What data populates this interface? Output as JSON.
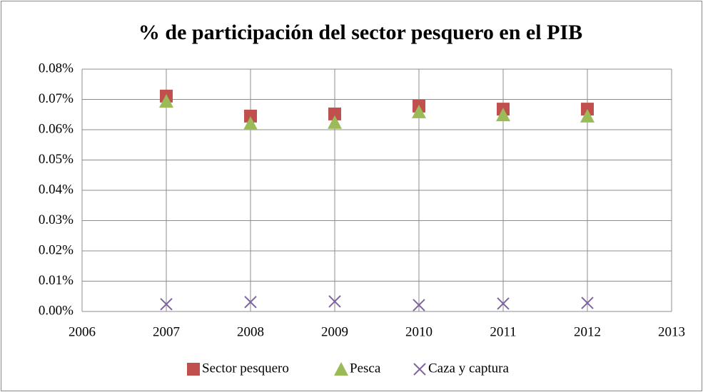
{
  "chart_data": {
    "type": "scatter",
    "title": "% de participación del sector pesquero en el PIB",
    "xlim": [
      2006,
      2013
    ],
    "xticks": [
      2006,
      2007,
      2008,
      2009,
      2010,
      2011,
      2012,
      2013
    ],
    "ylim": [
      0,
      0.08
    ],
    "yticks": [
      {
        "value": 0,
        "label": "0.00%"
      },
      {
        "value": 0.01,
        "label": "0.01%"
      },
      {
        "value": 0.02,
        "label": "0.02%"
      },
      {
        "value": 0.03,
        "label": "0.03%"
      },
      {
        "value": 0.04,
        "label": "0.04%"
      },
      {
        "value": 0.05,
        "label": "0.05%"
      },
      {
        "value": 0.06,
        "label": "0.06%"
      },
      {
        "value": 0.07,
        "label": "0.07%"
      },
      {
        "value": 0.08,
        "label": "0.08%"
      }
    ],
    "grid": true,
    "legend": "bottom",
    "x": [
      2007,
      2008,
      2009,
      2010,
      2011,
      2012
    ],
    "series": [
      {
        "name": "Sector pesquero",
        "color": "#c0504d",
        "marker": "square",
        "values": [
          0.0711,
          0.0645,
          0.0652,
          0.0678,
          0.0668,
          0.0668
        ]
      },
      {
        "name": "Pesca",
        "color": "#9bbb59",
        "marker": "triangle",
        "values": [
          0.0694,
          0.0621,
          0.0624,
          0.0659,
          0.0649,
          0.0645
        ]
      },
      {
        "name": "Caza y captura",
        "color": "#8064a2",
        "marker": "x",
        "values": [
          0.0024,
          0.0031,
          0.0033,
          0.0021,
          0.0026,
          0.0028
        ]
      }
    ]
  }
}
